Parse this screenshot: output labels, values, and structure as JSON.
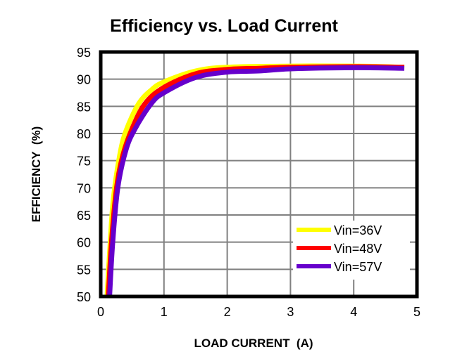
{
  "chart_data": {
    "type": "line",
    "title": "Efficiency vs. Load Current",
    "xlabel": "LOAD CURRENT  (A)",
    "ylabel": "EFFICIENCY  (%)",
    "xlim": [
      0,
      5
    ],
    "ylim": [
      50,
      95
    ],
    "xticks": [
      "0",
      "1",
      "2",
      "3",
      "4",
      "5"
    ],
    "yticks": [
      "50",
      "55",
      "60",
      "65",
      "70",
      "75",
      "80",
      "85",
      "90",
      "95"
    ],
    "grid": true,
    "legend_position": "bottom-right",
    "series": [
      {
        "name": "Vin=36V",
        "color": "#ffff00",
        "x": [
          0.1,
          0.15,
          0.2,
          0.3,
          0.4,
          0.6,
          0.8,
          1.0,
          1.5,
          2.0,
          3.0,
          4.0,
          4.8
        ],
        "y": [
          50,
          60,
          68,
          76,
          80.5,
          85.5,
          88,
          89.5,
          91.5,
          92.2,
          92.4,
          92.4,
          92.2
        ]
      },
      {
        "name": "Vin=48V",
        "color": "#ff0000",
        "x": [
          0.12,
          0.17,
          0.25,
          0.35,
          0.5,
          0.7,
          1.0,
          1.5,
          2.0,
          2.5,
          3.0,
          4.0,
          4.8
        ],
        "y": [
          50,
          60,
          70,
          76,
          81,
          85.5,
          88.5,
          91,
          91.8,
          92,
          92.2,
          92.3,
          92.2
        ]
      },
      {
        "name": "Vin=57V",
        "color": "#6600cc",
        "x": [
          0.14,
          0.19,
          0.27,
          0.4,
          0.55,
          0.8,
          1.0,
          1.5,
          2.0,
          2.5,
          3.0,
          4.0,
          4.8
        ],
        "y": [
          50,
          60,
          70,
          77,
          81,
          85.5,
          87.5,
          90.3,
          91.3,
          91.5,
          91.9,
          92.1,
          92.0
        ]
      }
    ]
  }
}
